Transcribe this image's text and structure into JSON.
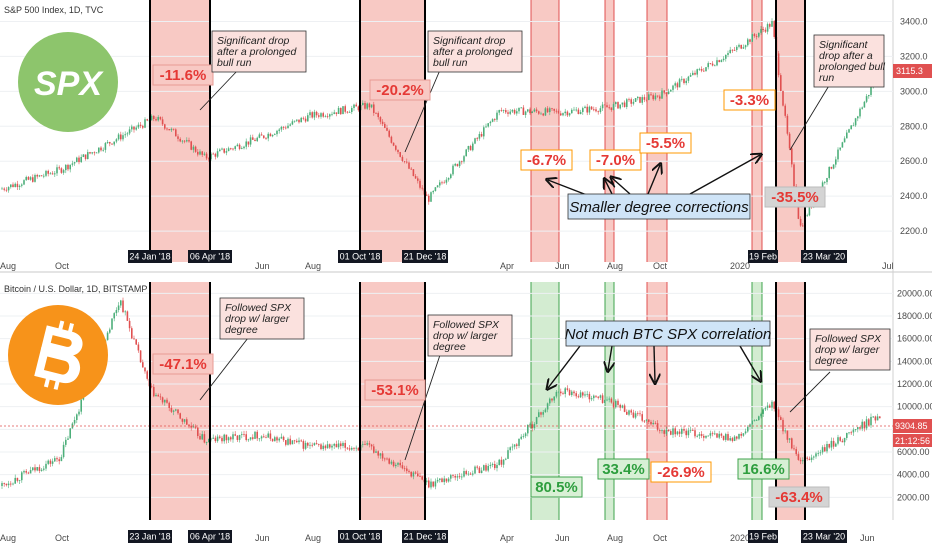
{
  "top_title": "S&P 500 Index, 1D, TVC",
  "bottom_title": "Bitcoin / U.S. Dollar, 1D, BITSTAMP",
  "top_logo_text": "SPX",
  "top_month_labels": [
    "Aug",
    "Oct",
    "Jun",
    "Aug",
    "Apr",
    "Jun",
    "Aug",
    "Oct",
    "2020",
    "Jul"
  ],
  "bottom_month_labels": [
    "Aug",
    "Oct",
    "Jun",
    "Aug",
    "Apr",
    "Jun",
    "Aug",
    "Oct",
    "2020",
    "Jun"
  ],
  "top_date_labels": [
    "24 Jan '18",
    "06 Apr '18",
    "01 Oct '18",
    "21 Dec '18",
    "19 Feb",
    "23 Mar '20"
  ],
  "bottom_date_labels": [
    "23 Jan '18",
    "06 Apr '18",
    "01 Oct '18",
    "21 Dec '18",
    "19 Feb",
    "23 Mar '20"
  ],
  "top_notes": [
    [
      "Significant drop",
      "after a prolonged",
      "bull run"
    ],
    [
      "Significant drop",
      "after a prolonged",
      "bull run"
    ],
    [
      "Significant",
      "drop after a",
      "prolonged bull",
      "run"
    ]
  ],
  "bottom_notes": [
    [
      "Followed SPX",
      "drop w/ larger",
      "degree"
    ],
    [
      "Followed SPX",
      "drop w/ larger",
      "degree"
    ],
    [
      "Followed SPX",
      "drop w/ larger",
      "degree"
    ]
  ],
  "top_callout": "Smaller degree corrections",
  "bottom_callout": "Not much BTC SPX correlation",
  "top_price_tag": "3115.3",
  "bottom_price_tag": "9304.85",
  "bottom_time_tag": "21:12:56",
  "colors": {
    "red_zone": "#f8c9c4",
    "green_zone": "#d3ecd1",
    "red_text": "#e53935",
    "green_text": "#2e9e3e",
    "orange_box": "#ff9800",
    "callout_fill": "#cfe4f7",
    "up_candle": "#4caf7a",
    "down_candle": "#e05050",
    "spx_logo": "#8dc56c",
    "btc_logo": "#f7931a"
  },
  "chart_data": [
    {
      "type": "line",
      "title": "S&P 500 Index, 1D, TVC",
      "ylim": [
        2000,
        3500
      ],
      "y_ticks": [
        2200,
        2400,
        2600,
        2800,
        3000,
        3200,
        3400
      ],
      "x": [
        "2017-08",
        "2017-10",
        "2018-01",
        "2018-04",
        "2018-06",
        "2018-08",
        "2018-10",
        "2018-12",
        "2019-04",
        "2019-06",
        "2019-08",
        "2019-10",
        "2020-01",
        "2020-02",
        "2020-03",
        "2020-05"
      ],
      "series": [
        {
          "values": [
            2440,
            2550,
            2850,
            2620,
            2730,
            2860,
            2920,
            2380,
            2890,
            2880,
            2910,
            2980,
            3250,
            3390,
            2220,
            3115
          ]
        }
      ],
      "annotations": [
        {
          "label": "-11.6%",
          "style": "red"
        },
        {
          "label": "-20.2%",
          "style": "red"
        },
        {
          "label": "-6.7%",
          "style": "orange"
        },
        {
          "label": "-7.0%",
          "style": "orange"
        },
        {
          "label": "-5.5%",
          "style": "orange"
        },
        {
          "label": "-3.3%",
          "style": "orange"
        },
        {
          "label": "-35.5%",
          "style": "red"
        }
      ],
      "grid": true
    },
    {
      "type": "line",
      "title": "Bitcoin / U.S. Dollar, 1D, BITSTAMP",
      "ylim": [
        0,
        21000
      ],
      "y_ticks": [
        2000,
        4000,
        6000,
        8000,
        10000,
        12000,
        14000,
        16000,
        18000,
        20000
      ],
      "x": [
        "2017-08",
        "2017-10",
        "2017-12",
        "2018-01",
        "2018-04",
        "2018-06",
        "2018-08",
        "2018-10",
        "2018-12",
        "2019-04",
        "2019-06",
        "2019-08",
        "2019-10",
        "2020-01",
        "2020-02",
        "2020-03",
        "2020-05"
      ],
      "series": [
        {
          "values": [
            3000,
            5500,
            19500,
            11500,
            7000,
            7500,
            6500,
            6400,
            3200,
            5000,
            11500,
            10500,
            8000,
            7200,
            10300,
            4900,
            9304
          ]
        }
      ],
      "annotations": [
        {
          "label": "-47.1%",
          "style": "red"
        },
        {
          "label": "-53.1%",
          "style": "red"
        },
        {
          "label": "80.5%",
          "style": "green"
        },
        {
          "label": "33.4%",
          "style": "green"
        },
        {
          "label": "-26.9%",
          "style": "orange"
        },
        {
          "label": "16.6%",
          "style": "green"
        },
        {
          "label": "-63.4%",
          "style": "red"
        }
      ],
      "grid": true
    }
  ]
}
